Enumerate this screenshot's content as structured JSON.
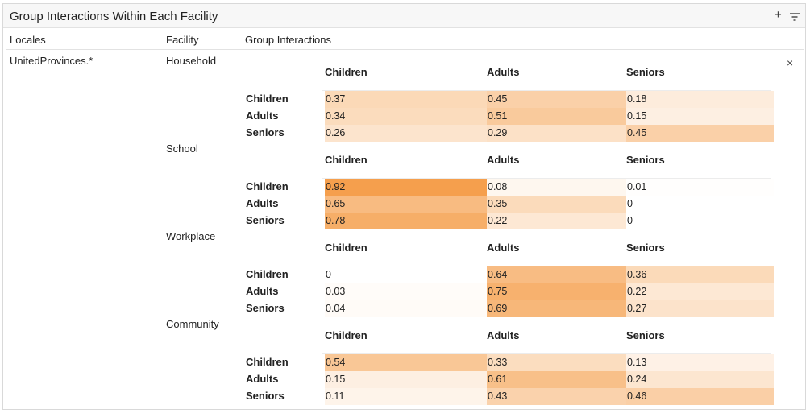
{
  "panel": {
    "title": "Group Interactions Within Each Facility",
    "add_icon": "+",
    "filter_icon": "≡",
    "close_icon": "×"
  },
  "columns": {
    "locales": "Locales",
    "facility": "Facility",
    "interactions": "Group Interactions"
  },
  "locale": "UnitedProvinces.*",
  "heat_color": "#f4973d",
  "facilities": [
    {
      "name": "Household",
      "col_labels": [
        "Children",
        "Adults",
        "Seniors"
      ],
      "row_labels": [
        "Children",
        "Adults",
        "Seniors"
      ],
      "values": [
        [
          "0.37",
          "0.45",
          "0.18"
        ],
        [
          "0.34",
          "0.51",
          "0.15"
        ],
        [
          "0.26",
          "0.29",
          "0.45"
        ]
      ]
    },
    {
      "name": "School",
      "col_labels": [
        "Children",
        "Adults",
        "Seniors"
      ],
      "row_labels": [
        "Children",
        "Adults",
        "Seniors"
      ],
      "values": [
        [
          "0.92",
          "0.08",
          "0.01"
        ],
        [
          "0.65",
          "0.35",
          "0"
        ],
        [
          "0.78",
          "0.22",
          "0"
        ]
      ]
    },
    {
      "name": "Workplace",
      "col_labels": [
        "Children",
        "Adults",
        "Seniors"
      ],
      "row_labels": [
        "Children",
        "Adults",
        "Seniors"
      ],
      "values": [
        [
          "0",
          "0.64",
          "0.36"
        ],
        [
          "0.03",
          "0.75",
          "0.22"
        ],
        [
          "0.04",
          "0.69",
          "0.27"
        ]
      ]
    },
    {
      "name": "Community",
      "col_labels": [
        "Children",
        "Adults",
        "Seniors"
      ],
      "row_labels": [
        "Children",
        "Adults",
        "Seniors"
      ],
      "values": [
        [
          "0.54",
          "0.33",
          "0.13"
        ],
        [
          "0.15",
          "0.61",
          "0.24"
        ],
        [
          "0.11",
          "0.43",
          "0.46"
        ]
      ]
    }
  ]
}
